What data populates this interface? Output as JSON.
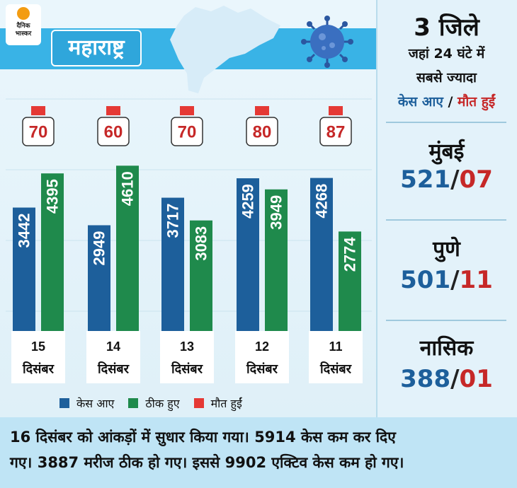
{
  "brand": {
    "logo_line1": "दैनिक",
    "logo_line2": "भास्कर"
  },
  "title": "महाराष्ट्र",
  "colors": {
    "cases": "#1d5f9b",
    "recovered": "#1f8a4c",
    "deaths": "#e53935",
    "banner": "#39b3e6"
  },
  "chart_data": {
    "type": "bar",
    "categories": [
      {
        "day": "15",
        "month": "दिसंबर"
      },
      {
        "day": "14",
        "month": "दिसंबर"
      },
      {
        "day": "13",
        "month": "दिसंबर"
      },
      {
        "day": "12",
        "month": "दिसंबर"
      },
      {
        "day": "11",
        "month": "दिसंबर"
      }
    ],
    "series": [
      {
        "name": "केस आए",
        "color": "#1d5f9b",
        "values": [
          3442,
          2949,
          3717,
          4259,
          4268
        ]
      },
      {
        "name": "ठीक हुए",
        "color": "#1f8a4c",
        "values": [
          4395,
          4610,
          3083,
          3949,
          2774
        ]
      },
      {
        "name": "मौत हुईं",
        "color": "#e53935",
        "values": [
          70,
          60,
          70,
          80,
          87
        ]
      }
    ]
  },
  "sidebar": {
    "heading_line1": "3 जिले",
    "heading_line2": "जहां 24 घंटे में",
    "heading_line3": "सबसे ज्यादा",
    "heading_cases": "केस आए",
    "heading_slash": " / ",
    "heading_deaths": "मौत हुईं",
    "districts": [
      {
        "name": "मुंबई",
        "cases": "521",
        "deaths": "07"
      },
      {
        "name": "पुणे",
        "cases": "501",
        "deaths": "11"
      },
      {
        "name": "नासिक",
        "cases": "388",
        "deaths": "01"
      }
    ],
    "slash": "/"
  },
  "footer": {
    "line1": "16 दिसंबर को आंकड़ों में सुधार किया गया। 5914 केस कम कर दिए",
    "line2": "गए। 3887 मरीज ठीक हो गए। इससे 9902 एक्टिव केस कम हो गए।"
  }
}
